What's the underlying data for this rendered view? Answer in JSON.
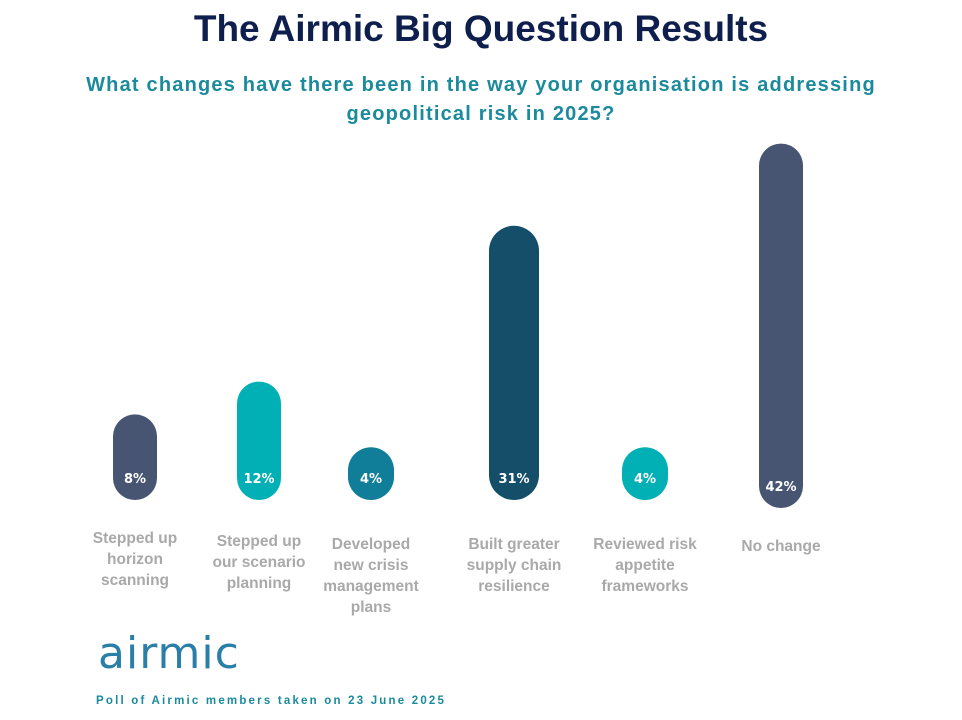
{
  "title": "The Airmic Big Question Results",
  "subtitle": "What changes have there been in the way your organisation is addressing geopolitical risk in 2025?",
  "logo_text": "airmic",
  "footnote": "Poll of Airmic members taken on 23 June 2025",
  "colors": {
    "title": "#0e1f4d",
    "subtitle": "#1a8a9c",
    "slate": "#475573",
    "teal": "#00b0b4",
    "petrol": "#117e99",
    "dark_teal": "#154e68",
    "label_gray": "#a9a9a9"
  },
  "chart_data": {
    "type": "bar",
    "categories": [
      "Stepped up horizon scanning",
      "Stepped up our scenario planning",
      "Developed new crisis management plans",
      "Built greater supply chain resilience",
      "Reviewed risk appetite frameworks",
      "No change"
    ],
    "category_lines": [
      [
        "Stepped up",
        "horizon",
        "scanning"
      ],
      [
        "Stepped up",
        "our scenario",
        "planning"
      ],
      [
        "Developed",
        "new crisis",
        "management",
        "plans"
      ],
      [
        "Built greater",
        "supply chain",
        "resilience"
      ],
      [
        "Reviewed risk",
        "appetite",
        "frameworks"
      ],
      [
        "No change"
      ]
    ],
    "values": [
      8,
      12,
      4,
      31,
      4,
      42
    ],
    "value_labels": [
      "8%",
      "12%",
      "4%",
      "31%",
      "4%",
      "42%"
    ],
    "bar_colors": [
      "#475573",
      "#00b0b4",
      "#117e99",
      "#154e68",
      "#00b0b4",
      "#475573"
    ],
    "unit": "%",
    "grid": false,
    "legend": "none"
  }
}
